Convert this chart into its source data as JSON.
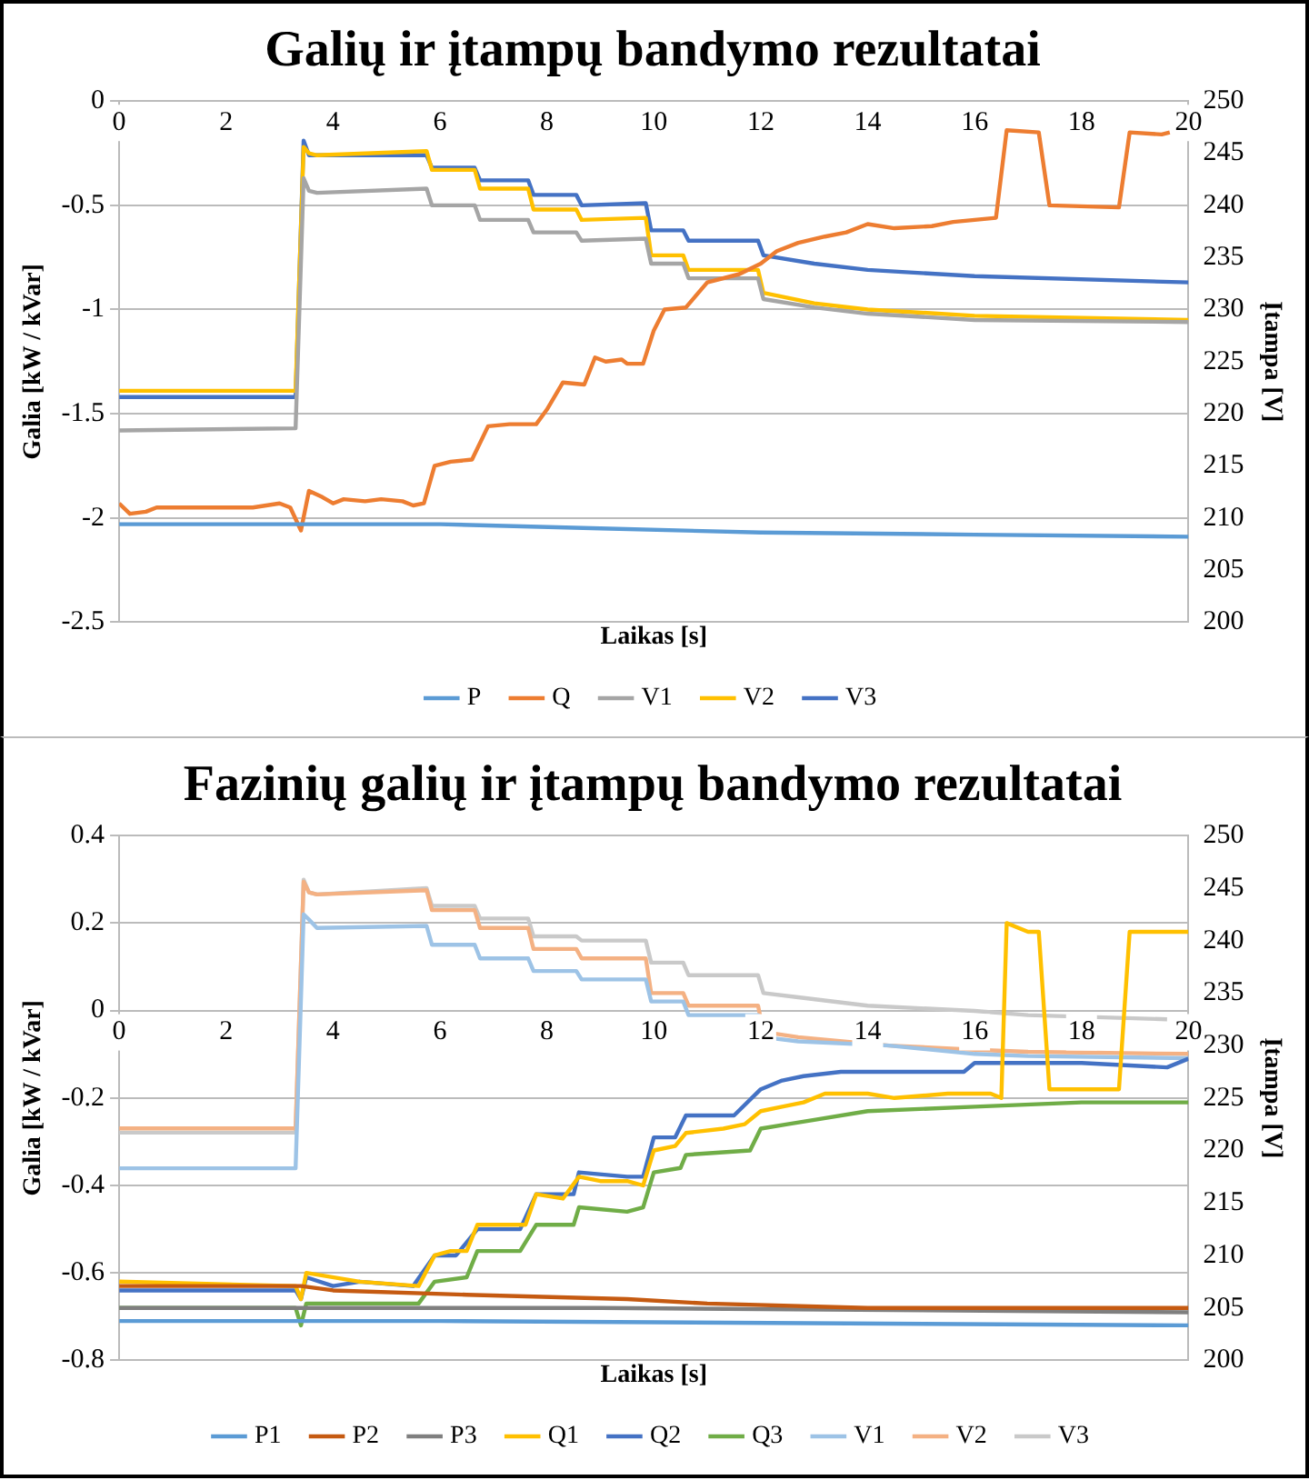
{
  "chart_data": [
    {
      "type": "line",
      "title": "Galių ir įtampų bandymo rezultatai",
      "xlabel": "Laikas [s]",
      "ylabel": "Galia [kW / kVar]",
      "y2label": "Įtampa [V]",
      "xlim": [
        0,
        20
      ],
      "xticks": [
        0,
        2,
        4,
        6,
        8,
        10,
        12,
        14,
        16,
        18,
        20
      ],
      "ylim": [
        -2.5,
        0
      ],
      "yticks": [
        -2.5,
        -2,
        -1.5,
        -1,
        -0.5,
        0
      ],
      "y2lim": [
        200,
        250
      ],
      "y2ticks": [
        200,
        205,
        210,
        215,
        220,
        225,
        230,
        235,
        240,
        245,
        250
      ],
      "grid": "y",
      "legend": "bottom",
      "series": [
        {
          "name": "P",
          "color": "#5b9bd5",
          "x": [
            0,
            6,
            9,
            12,
            16,
            20
          ],
          "values": [
            -2.03,
            -2.03,
            -2.05,
            -2.07,
            -2.08,
            -2.09
          ]
        },
        {
          "name": "Q",
          "color": "#ed7d31",
          "x": [
            0,
            0.2,
            0.5,
            0.7,
            1,
            2.5,
            3,
            3.2,
            3.4,
            3.55,
            3.8,
            4,
            4.2,
            4.6,
            4.9,
            5.3,
            5.5,
            5.7,
            5.9,
            6.2,
            6.6,
            6.9,
            7.3,
            7.8,
            8,
            8.3,
            8.7,
            8.9,
            9.1,
            9.4,
            9.5,
            9.8,
            10,
            10.2,
            10.6,
            11,
            11.6,
            12,
            12.3,
            12.7,
            13.2,
            13.6,
            14,
            14.5,
            15.2,
            15.6,
            16,
            16.4,
            16.6,
            17.2,
            17.4,
            18.7,
            18.9,
            19.5,
            19.65
          ],
          "values": [
            -1.93,
            -1.98,
            -1.97,
            -1.95,
            -1.95,
            -1.95,
            -1.93,
            -1.95,
            -2.06,
            -1.87,
            -1.9,
            -1.93,
            -1.91,
            -1.92,
            -1.91,
            -1.92,
            -1.94,
            -1.93,
            -1.75,
            -1.73,
            -1.72,
            -1.56,
            -1.55,
            -1.55,
            -1.48,
            -1.35,
            -1.36,
            -1.23,
            -1.25,
            -1.24,
            -1.26,
            -1.26,
            -1.1,
            -1,
            -0.99,
            -0.87,
            -0.83,
            -0.78,
            -0.72,
            -0.68,
            -0.65,
            -0.63,
            -0.59,
            -0.61,
            -0.6,
            -0.58,
            -0.57,
            -0.56,
            -0.14,
            -0.15,
            -0.5,
            -0.51,
            -0.15,
            -0.16,
            -0.15
          ]
        },
        {
          "name": "V1",
          "color": "#a5a5a5",
          "axis": "y2",
          "x": [
            0,
            3.3,
            3.45,
            3.55,
            3.7,
            5.75,
            5.85,
            6.65,
            6.75,
            7.65,
            7.75,
            8.55,
            8.65,
            9.85,
            9.95,
            10.55,
            10.65,
            11.95,
            12.05,
            13,
            14,
            16,
            20
          ],
          "values": [
            218.4,
            218.6,
            242.6,
            241.4,
            241.2,
            241.6,
            240,
            240,
            238.6,
            238.6,
            237.4,
            237.4,
            236.6,
            236.8,
            234.4,
            234.4,
            233,
            233,
            231,
            230.2,
            229.6,
            229,
            228.8
          ]
        },
        {
          "name": "V2",
          "color": "#ffc000",
          "axis": "y2",
          "x": [
            0,
            3.3,
            3.45,
            3.55,
            3.7,
            5.75,
            5.85,
            6.65,
            6.75,
            7.65,
            7.75,
            8.55,
            8.65,
            9.85,
            9.95,
            10.55,
            10.65,
            11.95,
            12.05,
            13,
            14,
            16,
            20
          ],
          "values": [
            222.2,
            222.2,
            245.6,
            245,
            244.8,
            245.2,
            243.4,
            243.4,
            241.6,
            241.6,
            239.6,
            239.6,
            238.6,
            238.8,
            235.2,
            235.2,
            233.8,
            233.8,
            231.6,
            230.6,
            230,
            229.4,
            229
          ]
        },
        {
          "name": "V3",
          "color": "#4472c4",
          "axis": "y2",
          "x": [
            0,
            3.3,
            3.45,
            3.55,
            3.7,
            5.75,
            5.85,
            6.65,
            6.75,
            7.65,
            7.75,
            8.55,
            8.65,
            9.85,
            9.95,
            10.55,
            10.65,
            11.95,
            12.05,
            13,
            14,
            16,
            20
          ],
          "values": [
            221.6,
            221.6,
            246.2,
            244.8,
            244.8,
            244.8,
            243.6,
            243.6,
            242.4,
            242.4,
            241,
            241,
            240,
            240.2,
            237.6,
            237.6,
            236.6,
            236.6,
            235.2,
            234.4,
            233.8,
            233.2,
            232.6
          ]
        }
      ]
    },
    {
      "type": "line",
      "title": "Fazinių galių ir įtampų bandymo rezultatai",
      "xlabel": "Laikas [s]",
      "ylabel": "Galia [kW / kVar]",
      "y2label": "Įtampa [V]",
      "xlim": [
        0,
        20
      ],
      "xticks": [
        0,
        2,
        4,
        6,
        8,
        10,
        12,
        14,
        16,
        18,
        20
      ],
      "ylim": [
        -0.8,
        0.4
      ],
      "yticks": [
        -0.8,
        -0.6,
        -0.4,
        -0.2,
        0,
        0.2,
        0.4
      ],
      "y2lim": [
        200,
        250
      ],
      "y2ticks": [
        200,
        205,
        210,
        215,
        220,
        225,
        230,
        235,
        240,
        245,
        250
      ],
      "grid": "y",
      "legend": "bottom",
      "series": [
        {
          "name": "P1",
          "color": "#5b9bd5",
          "x": [
            0,
            6,
            20
          ],
          "values": [
            -0.71,
            -0.71,
            -0.72
          ]
        },
        {
          "name": "P2",
          "color": "#c55a11",
          "x": [
            0,
            3.4,
            4,
            6.5,
            9.5,
            11,
            14,
            20
          ],
          "values": [
            -0.63,
            -0.63,
            -0.64,
            -0.65,
            -0.66,
            -0.67,
            -0.68,
            -0.68
          ]
        },
        {
          "name": "P3",
          "color": "#7f7f7f",
          "x": [
            0,
            9,
            20
          ],
          "values": [
            -0.68,
            -0.68,
            -0.69
          ]
        },
        {
          "name": "Q1",
          "color": "#ffc000",
          "x": [
            0,
            3.3,
            3.4,
            3.5,
            4.5,
            5.6,
            5.9,
            6.2,
            6.5,
            6.7,
            7.3,
            7.6,
            7.8,
            8.3,
            8.6,
            9,
            9.5,
            9.8,
            10,
            10.4,
            10.6,
            11.3,
            11.7,
            12,
            12.4,
            12.8,
            13.2,
            14,
            14.5,
            15.5,
            16.3,
            16.5,
            16.6,
            17,
            17.2,
            17.4,
            18.5,
            18.7,
            18.9,
            19.5,
            20
          ],
          "values": [
            -0.62,
            -0.63,
            -0.66,
            -0.6,
            -0.62,
            -0.63,
            -0.56,
            -0.55,
            -0.55,
            -0.49,
            -0.49,
            -0.49,
            -0.42,
            -0.43,
            -0.38,
            -0.39,
            -0.39,
            -0.4,
            -0.32,
            -0.31,
            -0.28,
            -0.27,
            -0.26,
            -0.23,
            -0.22,
            -0.21,
            -0.19,
            -0.19,
            -0.2,
            -0.19,
            -0.19,
            -0.2,
            0.2,
            0.18,
            0.18,
            -0.18,
            -0.18,
            -0.18,
            0.18,
            0.18,
            0.18
          ]
        },
        {
          "name": "Q2",
          "color": "#4472c4",
          "x": [
            0,
            3.3,
            3.4,
            3.5,
            4,
            4.5,
            5.5,
            5.9,
            6.3,
            6.7,
            7.5,
            7.8,
            8.5,
            8.6,
            9.5,
            9.8,
            10,
            10.4,
            10.6,
            11.5,
            12,
            12.4,
            12.8,
            13.5,
            14,
            15.8,
            16,
            18,
            19.6,
            20
          ],
          "values": [
            -0.64,
            -0.64,
            -0.66,
            -0.61,
            -0.63,
            -0.62,
            -0.63,
            -0.56,
            -0.56,
            -0.5,
            -0.5,
            -0.42,
            -0.42,
            -0.37,
            -0.38,
            -0.38,
            -0.29,
            -0.29,
            -0.24,
            -0.24,
            -0.18,
            -0.16,
            -0.15,
            -0.14,
            -0.14,
            -0.14,
            -0.12,
            -0.12,
            -0.13,
            -0.11
          ]
        },
        {
          "name": "Q3",
          "color": "#70ad47",
          "x": [
            0,
            3.3,
            3.4,
            3.5,
            4,
            5.6,
            5.9,
            6.5,
            6.7,
            7.5,
            7.8,
            8.5,
            8.6,
            9.5,
            9.8,
            10,
            10.5,
            10.6,
            11.8,
            12,
            12.5,
            13,
            14,
            16,
            18,
            20
          ],
          "values": [
            -0.68,
            -0.68,
            -0.72,
            -0.67,
            -0.67,
            -0.67,
            -0.62,
            -0.61,
            -0.55,
            -0.55,
            -0.49,
            -0.49,
            -0.45,
            -0.46,
            -0.45,
            -0.37,
            -0.36,
            -0.33,
            -0.32,
            -0.27,
            -0.26,
            -0.25,
            -0.23,
            -0.22,
            -0.21,
            -0.21
          ]
        },
        {
          "name": "V1",
          "color": "#9dc3e6",
          "axis": "y2",
          "x": [
            0,
            3.3,
            3.45,
            3.55,
            3.7,
            5.75,
            5.85,
            6.65,
            6.75,
            7.65,
            7.75,
            8.55,
            8.65,
            9.85,
            9.95,
            10.55,
            10.65,
            11.95,
            12.05,
            12.7,
            14.4,
            16,
            17,
            20
          ],
          "values": [
            218.3,
            218.3,
            242.5,
            242,
            241.2,
            241.4,
            239.6,
            239.6,
            238.3,
            238.3,
            237.1,
            237.1,
            236.3,
            236.3,
            234.2,
            234.2,
            232.9,
            232.9,
            230.8,
            230.4,
            230,
            229.2,
            229,
            228.8
          ]
        },
        {
          "name": "V2",
          "color": "#f4b183",
          "axis": "y2",
          "x": [
            0,
            3.3,
            3.45,
            3.55,
            3.7,
            5.75,
            5.85,
            6.65,
            6.75,
            7.65,
            7.75,
            8.55,
            8.65,
            9.85,
            9.95,
            10.55,
            10.65,
            11.95,
            12.05,
            12.7,
            14.4,
            16,
            17,
            20
          ],
          "values": [
            222.1,
            222.1,
            245.6,
            244.6,
            244.4,
            244.8,
            242.9,
            242.9,
            241.2,
            241.2,
            239.2,
            239.2,
            238.3,
            238.3,
            235,
            235,
            233.8,
            233.8,
            231.3,
            230.8,
            230,
            229.6,
            229.4,
            229.2
          ]
        },
        {
          "name": "V3",
          "color": "#c9c9c9",
          "axis": "y2",
          "x": [
            0,
            3.3,
            3.45,
            3.55,
            3.7,
            5.75,
            5.85,
            6.65,
            6.75,
            7.65,
            7.75,
            8.55,
            8.65,
            9.85,
            9.95,
            10.55,
            10.65,
            11.95,
            12.05,
            12.7,
            14,
            16,
            17,
            19.6
          ],
          "values": [
            221.7,
            221.7,
            245.8,
            244.6,
            244.4,
            245,
            243.3,
            243.3,
            242.1,
            242.1,
            240.4,
            240.4,
            240,
            240,
            237.9,
            237.9,
            236.7,
            236.7,
            235,
            234.6,
            233.8,
            233.3,
            232.9,
            232.5
          ]
        }
      ]
    }
  ]
}
